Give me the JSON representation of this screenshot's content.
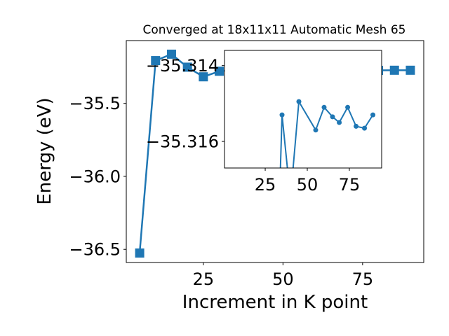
{
  "colors": {
    "series": "#1f77b4",
    "axis": "#000000",
    "background": "#ffffff"
  },
  "chart_data": [
    {
      "type": "line",
      "role": "main",
      "title": "Converged at 18x11x11 Automatic Mesh 65",
      "xlabel": "Increment in K point",
      "ylabel": "Energy (eV)",
      "marker": "square",
      "xlim": [
        0.8,
        94.2
      ],
      "ylim": [
        -36.59,
        -35.07
      ],
      "xticks": [
        25,
        50,
        75
      ],
      "xtick_labels": [
        "25",
        "50",
        "75"
      ],
      "yticks": [
        -36.5,
        -36.0,
        -35.5
      ],
      "ytick_labels": [
        "−36.5",
        "−36.0",
        "−35.5"
      ],
      "grid": false,
      "x": [
        5,
        10,
        15,
        20,
        25,
        30,
        35,
        40,
        45,
        50,
        55,
        60,
        65,
        70,
        75,
        80,
        85,
        90
      ],
      "y": [
        -36.525,
        -35.207,
        -35.163,
        -35.252,
        -35.318,
        -35.28,
        -35.27,
        -35.275,
        -35.273,
        -35.274,
        -35.273,
        -35.274,
        -35.273,
        -35.274,
        -35.273,
        -35.274,
        -35.273,
        -35.273
      ]
    },
    {
      "type": "line",
      "role": "inset",
      "marker": "circle",
      "xlim": [
        0.8,
        94.2
      ],
      "ylim": [
        -35.3167,
        -35.3136
      ],
      "xticks": [
        25,
        50,
        75
      ],
      "xtick_labels": [
        "25",
        "50",
        "75"
      ],
      "yticks": [
        -35.316,
        -35.314
      ],
      "ytick_labels": [
        "−35.316",
        "−35.314"
      ],
      "grid": false,
      "x": [
        33.5,
        35,
        40,
        45,
        55,
        60,
        65,
        69,
        74,
        79,
        84,
        89
      ],
      "y": [
        -35.3175,
        -35.3153,
        -35.3175,
        -35.31495,
        -35.3157,
        -35.3151,
        -35.31535,
        -35.3155,
        -35.3151,
        -35.3156,
        -35.31565,
        -35.3153
      ]
    }
  ]
}
